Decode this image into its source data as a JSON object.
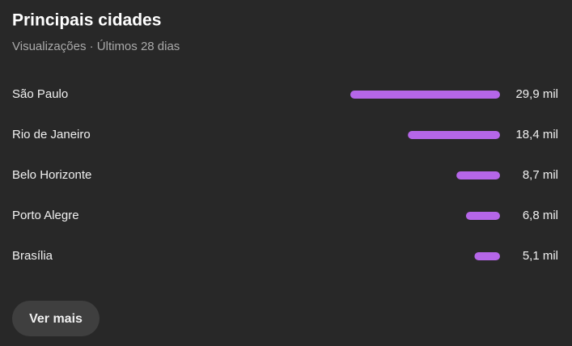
{
  "chart_data": {
    "type": "bar",
    "title": "Principais cidades",
    "subtitle": "Visualizações · Últimos 28 dias",
    "categories": [
      "São Paulo",
      "Rio de Janeiro",
      "Belo Horizonte",
      "Porto Alegre",
      "Brasília"
    ],
    "values": [
      29.9,
      18.4,
      8.7,
      6.8,
      5.1
    ],
    "value_labels": [
      "29,9 mil",
      "18,4 mil",
      "8,7 mil",
      "6,8 mil",
      "5,1 mil"
    ],
    "color": "#b566e8"
  },
  "button": {
    "label": "Ver mais"
  }
}
